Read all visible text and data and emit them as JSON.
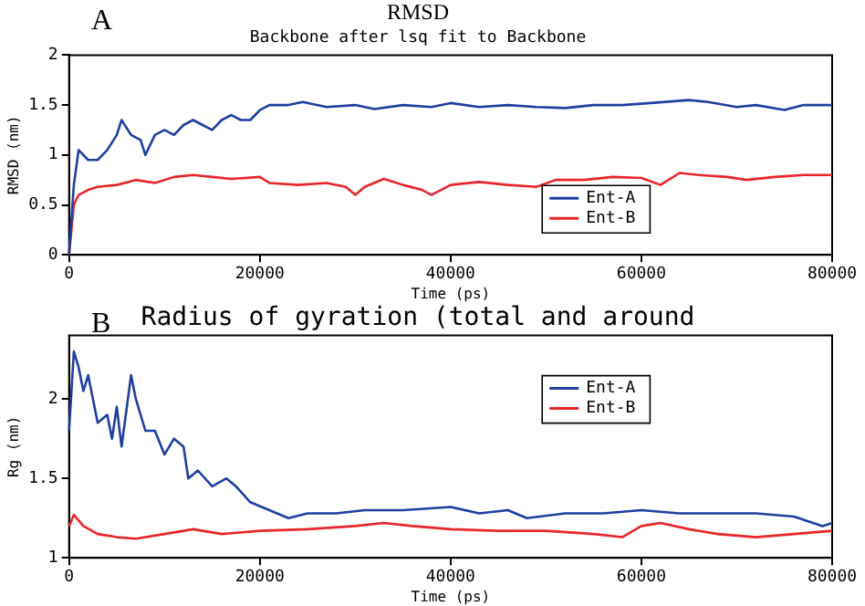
{
  "chart_data": [
    {
      "type": "line",
      "title": "RMSD",
      "subtitle": "Backbone after lsq fit to Backbone",
      "xlabel": "Time (ps)",
      "ylabel": "RMSD (nm)",
      "annotations": [
        "A"
      ],
      "xlim": [
        0,
        80000
      ],
      "xticks": [
        0,
        20000,
        40000,
        60000,
        80000
      ],
      "ylim": [
        0,
        2
      ],
      "yticks": [
        0,
        0.5,
        1,
        1.5,
        2
      ],
      "grid": false,
      "legend": "bottom right",
      "marker": "none",
      "series": [
        {
          "name": "Ent-A",
          "color": "#1f3fa0",
          "x": [
            0,
            500,
            1000,
            2000,
            3000,
            4000,
            5000,
            5500,
            6500,
            7500,
            8000,
            9000,
            10000,
            11000,
            12000,
            13000,
            14000,
            15000,
            16000,
            17000,
            18000,
            19000,
            20000,
            21000,
            23000,
            24500,
            27000,
            30000,
            32000,
            35000,
            38000,
            40000,
            43000,
            46000,
            49000,
            52000,
            55000,
            58000,
            61000,
            65000,
            67000,
            70000,
            72000,
            75000,
            77000,
            80000
          ],
          "values": [
            0,
            0.7,
            1.05,
            0.95,
            0.95,
            1.05,
            1.2,
            1.35,
            1.2,
            1.15,
            1.0,
            1.2,
            1.25,
            1.2,
            1.3,
            1.35,
            1.3,
            1.25,
            1.35,
            1.4,
            1.35,
            1.35,
            1.45,
            1.5,
            1.5,
            1.53,
            1.48,
            1.5,
            1.46,
            1.5,
            1.48,
            1.52,
            1.48,
            1.5,
            1.48,
            1.47,
            1.5,
            1.5,
            1.52,
            1.55,
            1.53,
            1.48,
            1.5,
            1.45,
            1.5,
            1.5
          ]
        },
        {
          "name": "Ent-B",
          "color": "#e8262a",
          "x": [
            0,
            500,
            1000,
            2000,
            3000,
            5000,
            7000,
            9000,
            11000,
            13000,
            15000,
            17000,
            20000,
            21000,
            24000,
            27000,
            29000,
            30000,
            31000,
            33000,
            35000,
            37000,
            38000,
            40000,
            43000,
            46000,
            49000,
            51000,
            54000,
            57000,
            60000,
            62000,
            64000,
            66000,
            69000,
            71000,
            74000,
            77000,
            80000
          ],
          "values": [
            0,
            0.5,
            0.6,
            0.65,
            0.68,
            0.7,
            0.75,
            0.72,
            0.78,
            0.8,
            0.78,
            0.76,
            0.78,
            0.72,
            0.7,
            0.72,
            0.68,
            0.6,
            0.68,
            0.76,
            0.7,
            0.65,
            0.6,
            0.7,
            0.73,
            0.7,
            0.68,
            0.75,
            0.75,
            0.78,
            0.77,
            0.7,
            0.82,
            0.8,
            0.78,
            0.75,
            0.78,
            0.8,
            0.8
          ]
        }
      ]
    },
    {
      "type": "line",
      "title": "Radius of gyration (total and around",
      "xlabel": "Time (ps)",
      "ylabel": "Rg (nm)",
      "annotations": [
        "B"
      ],
      "xlim": [
        0,
        80000
      ],
      "xticks": [
        0,
        20000,
        40000,
        60000,
        80000
      ],
      "ylim": [
        1,
        2.4
      ],
      "yticks": [
        1,
        1.5,
        2
      ],
      "grid": false,
      "legend": "top right",
      "marker": "none",
      "series": [
        {
          "name": "Ent-A",
          "color": "#1f3fa0",
          "x": [
            0,
            500,
            1000,
            1500,
            2000,
            3000,
            4000,
            4500,
            5000,
            5500,
            6500,
            7000,
            8000,
            9000,
            10000,
            11000,
            12000,
            12500,
            13500,
            15000,
            16500,
            17500,
            19000,
            21000,
            23000,
            25000,
            28000,
            31000,
            35000,
            40000,
            43000,
            46000,
            48000,
            52000,
            56000,
            60000,
            64000,
            68000,
            72000,
            76000,
            79000,
            80000
          ],
          "values": [
            1.8,
            2.3,
            2.2,
            2.05,
            2.15,
            1.85,
            1.9,
            1.75,
            1.95,
            1.7,
            2.15,
            2.0,
            1.8,
            1.8,
            1.65,
            1.75,
            1.7,
            1.5,
            1.55,
            1.45,
            1.5,
            1.45,
            1.35,
            1.3,
            1.25,
            1.28,
            1.28,
            1.3,
            1.3,
            1.32,
            1.28,
            1.3,
            1.25,
            1.28,
            1.28,
            1.3,
            1.28,
            1.28,
            1.28,
            1.26,
            1.2,
            1.22
          ]
        },
        {
          "name": "Ent-B",
          "color": "#e8262a",
          "x": [
            0,
            500,
            1500,
            3000,
            5000,
            7000,
            10000,
            13000,
            16000,
            20000,
            25000,
            30000,
            33000,
            36000,
            40000,
            45000,
            50000,
            55000,
            58000,
            60000,
            62000,
            65000,
            68000,
            72000,
            76000,
            80000
          ],
          "values": [
            1.2,
            1.27,
            1.2,
            1.15,
            1.13,
            1.12,
            1.15,
            1.18,
            1.15,
            1.17,
            1.18,
            1.2,
            1.22,
            1.2,
            1.18,
            1.17,
            1.17,
            1.15,
            1.13,
            1.2,
            1.22,
            1.18,
            1.15,
            1.13,
            1.15,
            1.17
          ]
        }
      ]
    }
  ]
}
